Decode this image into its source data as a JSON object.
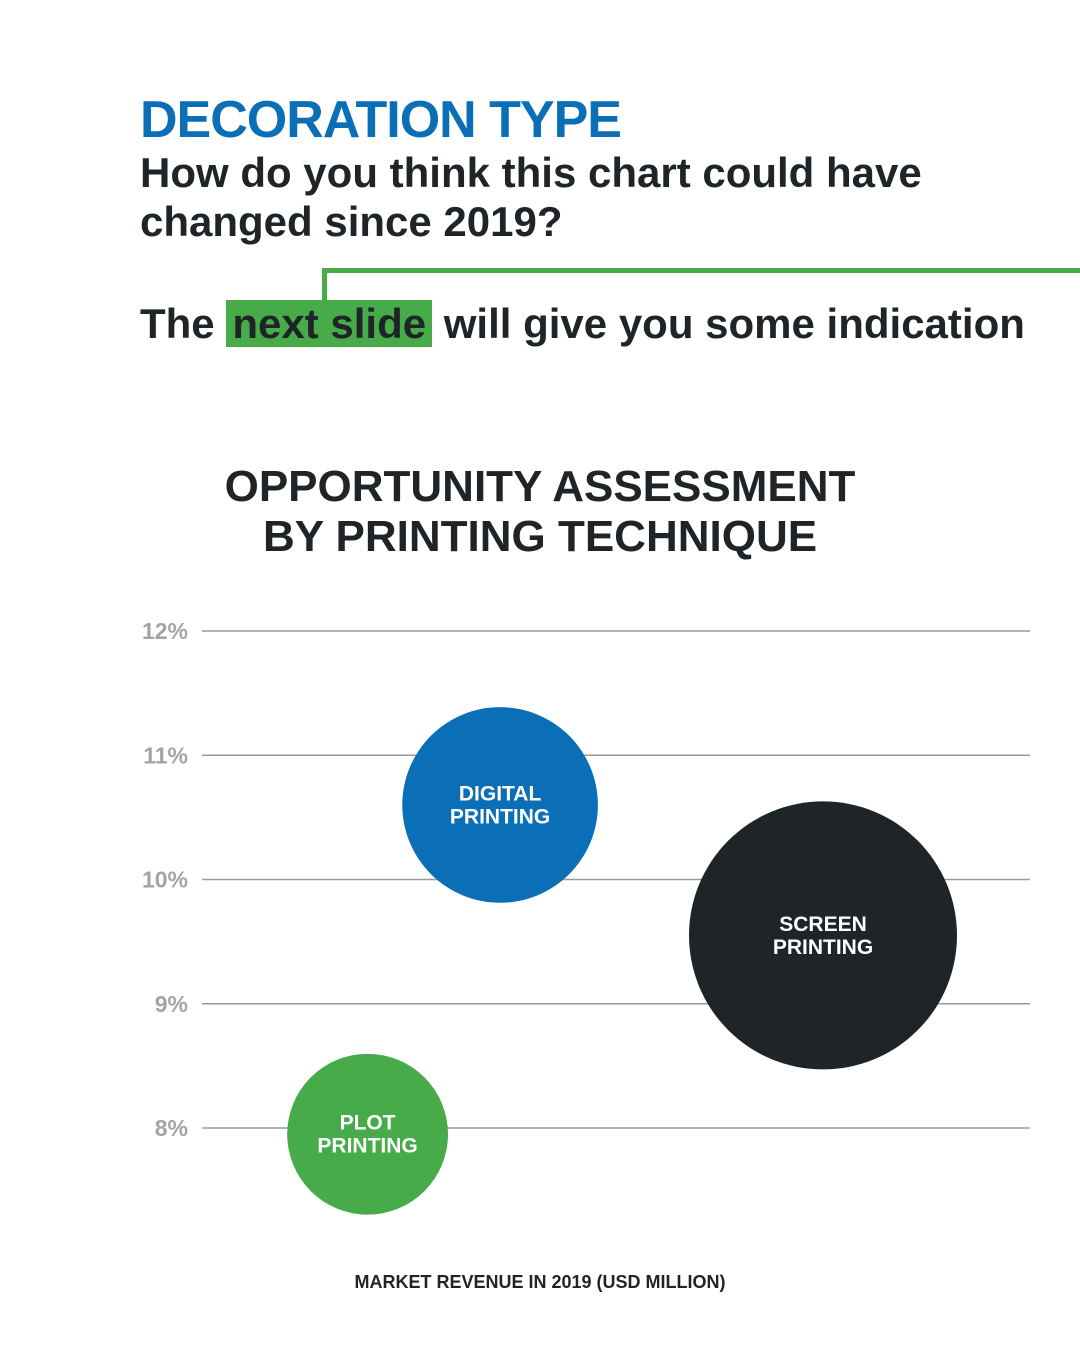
{
  "header": {
    "title": "DECORATION TYPE",
    "question": "How do you think this chart could have changed since 2019?",
    "indication_before": "The",
    "indication_highlight": "next slide",
    "indication_after": "will give you some indication"
  },
  "colors": {
    "accent_blue": "#0b6fb7",
    "accent_green": "#46ab48",
    "dark": "#1f2428",
    "gridline": "#9a9a9a",
    "tick_text": "#a4a4a4"
  },
  "chart_data": {
    "type": "scatter",
    "title_lines": [
      "OPPORTUNITY ASSESSMENT",
      "BY PRINTING TECHNIQUE"
    ],
    "xlabel": "MARKET REVENUE IN 2019 (USD MILLION)",
    "ylabel": "",
    "ylim": [
      8,
      12
    ],
    "yticks": [
      {
        "value": 12,
        "label": "12%"
      },
      {
        "value": 11,
        "label": "11%"
      },
      {
        "value": 10,
        "label": "10%"
      },
      {
        "value": 9,
        "label": "9%"
      },
      {
        "value": 8,
        "label": "8%"
      }
    ],
    "grid": true,
    "legend": "none",
    "bubbles": [
      {
        "label_lines": [
          "DIGITAL",
          "PRINTING"
        ],
        "x_rel": 0.36,
        "y": 10.6,
        "size_rel": 0.73,
        "color": "#0b6fb7"
      },
      {
        "label_lines": [
          "SCREEN",
          "PRINTING"
        ],
        "x_rel": 0.75,
        "y": 9.55,
        "size_rel": 1.0,
        "color": "#1f2428"
      },
      {
        "label_lines": [
          "PLOT",
          "PRINTING"
        ],
        "x_rel": 0.2,
        "y": 7.95,
        "size_rel": 0.6,
        "color": "#46ab48"
      }
    ]
  }
}
